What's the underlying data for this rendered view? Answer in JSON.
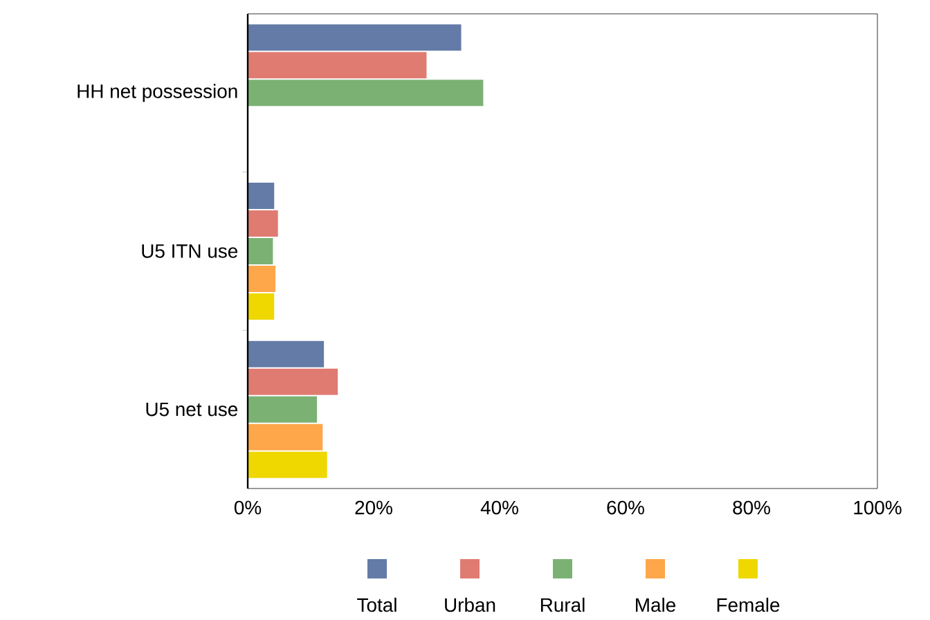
{
  "chart_data": {
    "type": "bar",
    "orientation": "horizontal",
    "categories": [
      "HH net possession",
      "U5 ITN use",
      "U5 net use"
    ],
    "series": [
      {
        "name": "Total",
        "color": "#637ba6",
        "values": [
          33.9,
          4.2,
          12.1
        ]
      },
      {
        "name": "Urban",
        "color": "#e07b72",
        "values": [
          28.4,
          4.8,
          14.3
        ]
      },
      {
        "name": "Rural",
        "color": "#7bb274",
        "values": [
          37.4,
          4.0,
          11.0
        ]
      },
      {
        "name": "Male",
        "color": "#fea64a",
        "values": [
          null,
          4.4,
          11.9
        ]
      },
      {
        "name": "Female",
        "color": "#eed800",
        "values": [
          null,
          4.2,
          12.6
        ]
      }
    ],
    "xlim": [
      0,
      100
    ],
    "xticks": [
      {
        "value": 0,
        "label": "0%"
      },
      {
        "value": 20,
        "label": "20%"
      },
      {
        "value": 40,
        "label": "40%"
      },
      {
        "value": 60,
        "label": "60%"
      },
      {
        "value": 80,
        "label": "80%"
      },
      {
        "value": 100,
        "label": "100%"
      }
    ],
    "grid": false,
    "legend": "bottom"
  }
}
